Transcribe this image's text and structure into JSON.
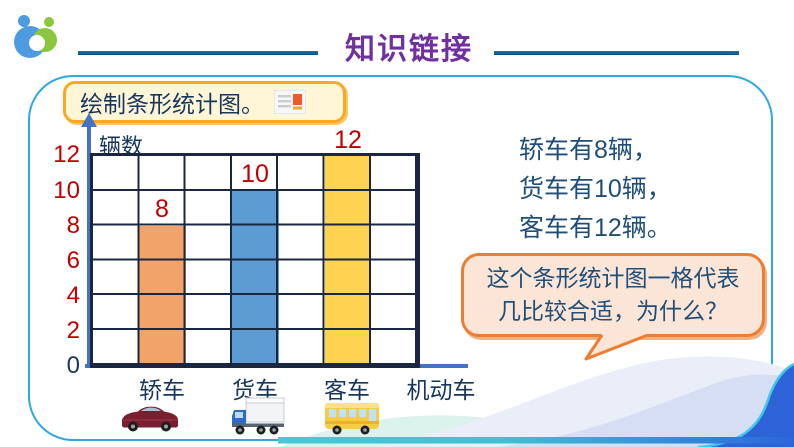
{
  "header": {
    "title": "知识链接"
  },
  "task_box": {
    "label": "绘制条形统计图。"
  },
  "chart_data": {
    "type": "bar",
    "title": "",
    "ylabel": "辆数",
    "xlabel": "机动车",
    "categories": [
      "轿车",
      "货车",
      "客车"
    ],
    "values": [
      8,
      10,
      12
    ],
    "bar_colors": [
      "#F2A369",
      "#5D9CD3",
      "#FFD34F"
    ],
    "yticks": [
      0,
      2,
      4,
      6,
      8,
      10,
      12
    ],
    "ylim": [
      0,
      12
    ],
    "grid": true,
    "grid_rows": 6,
    "grid_cols": 7,
    "units_per_cell": 2,
    "legend": "none"
  },
  "info": {
    "lines": [
      "轿车有8辆，",
      "货车有10辆，",
      "客车有12辆。"
    ]
  },
  "bubble": {
    "lines": [
      "这个条形统计图一格代表",
      "几比较合适，为什么？"
    ]
  },
  "colors": {
    "title": "#7030A0",
    "header_line": "#1A6397",
    "panel_border": "#2FA8E1",
    "task_border": "#F9A825",
    "axis": "#4472C4",
    "tick_red": "#C00000",
    "tick_zero": "#17375E",
    "bubble_fill": "#FBE5D6",
    "bubble_border": "#ED7D31"
  }
}
